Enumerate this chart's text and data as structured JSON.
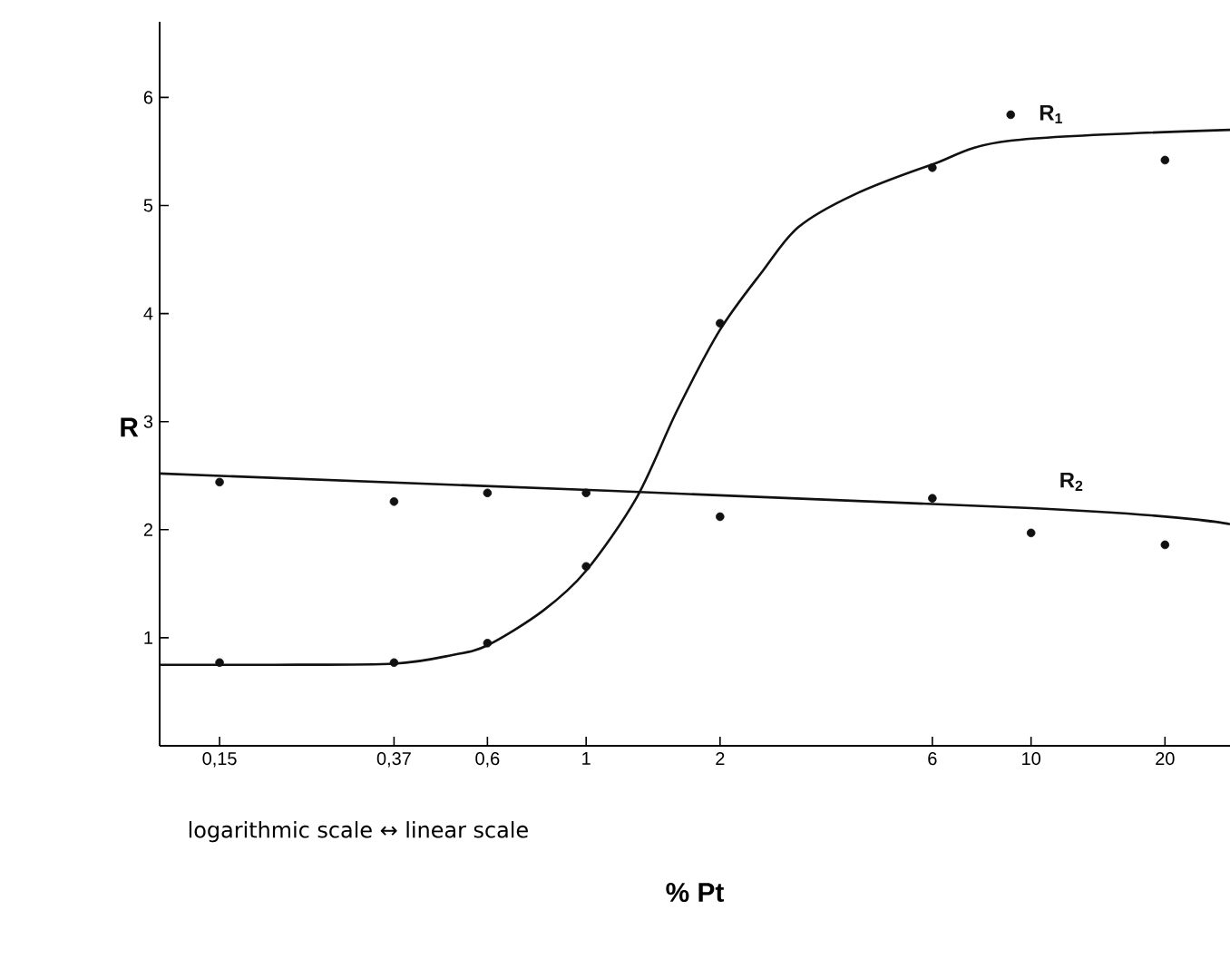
{
  "chart_data": {
    "type": "scatter",
    "xlabel": "% Pt",
    "ylabel": "R",
    "log": "x",
    "xlim": [
      0.11,
      28
    ],
    "xticks": [
      {
        "value": 0.15,
        "label": "0,15"
      },
      {
        "value": 0.37,
        "label": "0,37"
      },
      {
        "value": 0.6,
        "label": "0,6"
      },
      1,
      2,
      6,
      10,
      20
    ],
    "ylim": [
      0,
      6.7
    ],
    "yticks": [
      1,
      2,
      3,
      4,
      5,
      6
    ],
    "annotations": [
      "logarithmic scale ↔ linear scale"
    ],
    "series": [
      {
        "marker": "circle",
        "color": "#111111",
        "x": [
          0.15,
          0.37,
          0.6,
          1,
          2,
          6,
          9,
          20
        ],
        "values": [
          0.77,
          0.77,
          0.95,
          1.66,
          3.91,
          5.35,
          5.84,
          5.42
        ]
      },
      {
        "type": "line",
        "name": "R$_{1}$",
        "marker": "none",
        "color": "#111111",
        "x": [
          0.11,
          0.2,
          0.37,
          0.5,
          0.6,
          0.8,
          1,
          1.3,
          1.6,
          2,
          2.5,
          3,
          4,
          6,
          9,
          28
        ],
        "values": [
          0.75,
          0.75,
          0.76,
          0.84,
          0.93,
          1.25,
          1.62,
          2.3,
          3.1,
          3.85,
          4.4,
          4.8,
          5.1,
          5.38,
          5.6,
          5.7
        ]
      },
      {
        "marker": "circle",
        "color": "#111111",
        "x": [
          0.15,
          0.37,
          0.6,
          1,
          2,
          6,
          10,
          20
        ],
        "values": [
          2.44,
          2.26,
          2.34,
          2.34,
          2.12,
          2.29,
          1.97,
          1.86
        ]
      },
      {
        "type": "line",
        "name": "R$_{2}$",
        "marker": "none",
        "color": "#111111",
        "x": [
          0.11,
          10,
          28
        ],
        "values": [
          2.52,
          2.2,
          2.05
        ]
      }
    ]
  }
}
